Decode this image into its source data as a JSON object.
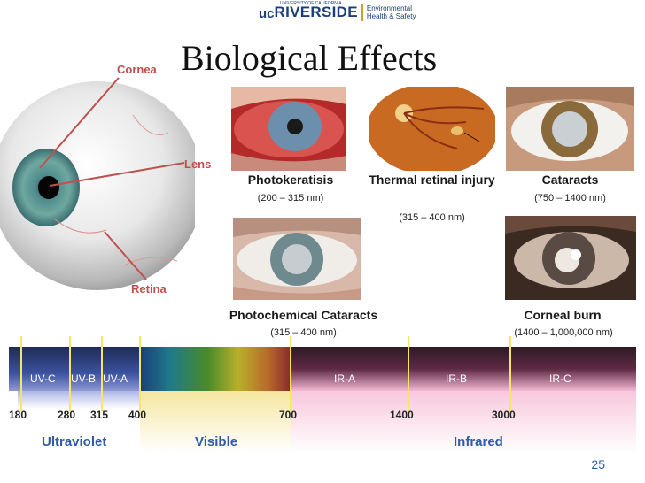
{
  "header": {
    "logo_uc": "uc",
    "logo_riverside": "RIVERSIDE",
    "logo_university": "UNIVERSITY OF CALIFORNIA",
    "logo_dept_line1": "Environmental",
    "logo_dept_line2": "Health & Safety"
  },
  "title": "Biological Effects",
  "eye_labels": {
    "cornea": "Cornea",
    "lens": "Lens",
    "retina": "Retina"
  },
  "effects": [
    {
      "name": "Photokeratisis",
      "range": "(200 – 315 nm)"
    },
    {
      "name": "Thermal retinal injury",
      "range": "(315 – 400 nm)"
    },
    {
      "name": "Cataracts",
      "range": "(750 – 1400 nm)"
    },
    {
      "name": "Photochemical Cataracts",
      "range": "(315 – 400 nm)"
    },
    {
      "name": "Corneal burn",
      "range": "(1400 – 1,000,000 nm)"
    }
  ],
  "spectrum": {
    "bands": [
      "UV-C",
      "UV-B",
      "UV-A",
      "IR-A",
      "IR-B",
      "IR-C"
    ],
    "wavelengths": [
      "180",
      "280",
      "315",
      "400",
      "700",
      "1400",
      "3000"
    ],
    "regions": [
      "Ultraviolet",
      "Visible",
      "Infrared"
    ]
  },
  "colors": {
    "label_red": "#c0504d",
    "region_blue": "#2e5aa8",
    "tick_yellow": "#f5e663"
  },
  "page_number": "25"
}
